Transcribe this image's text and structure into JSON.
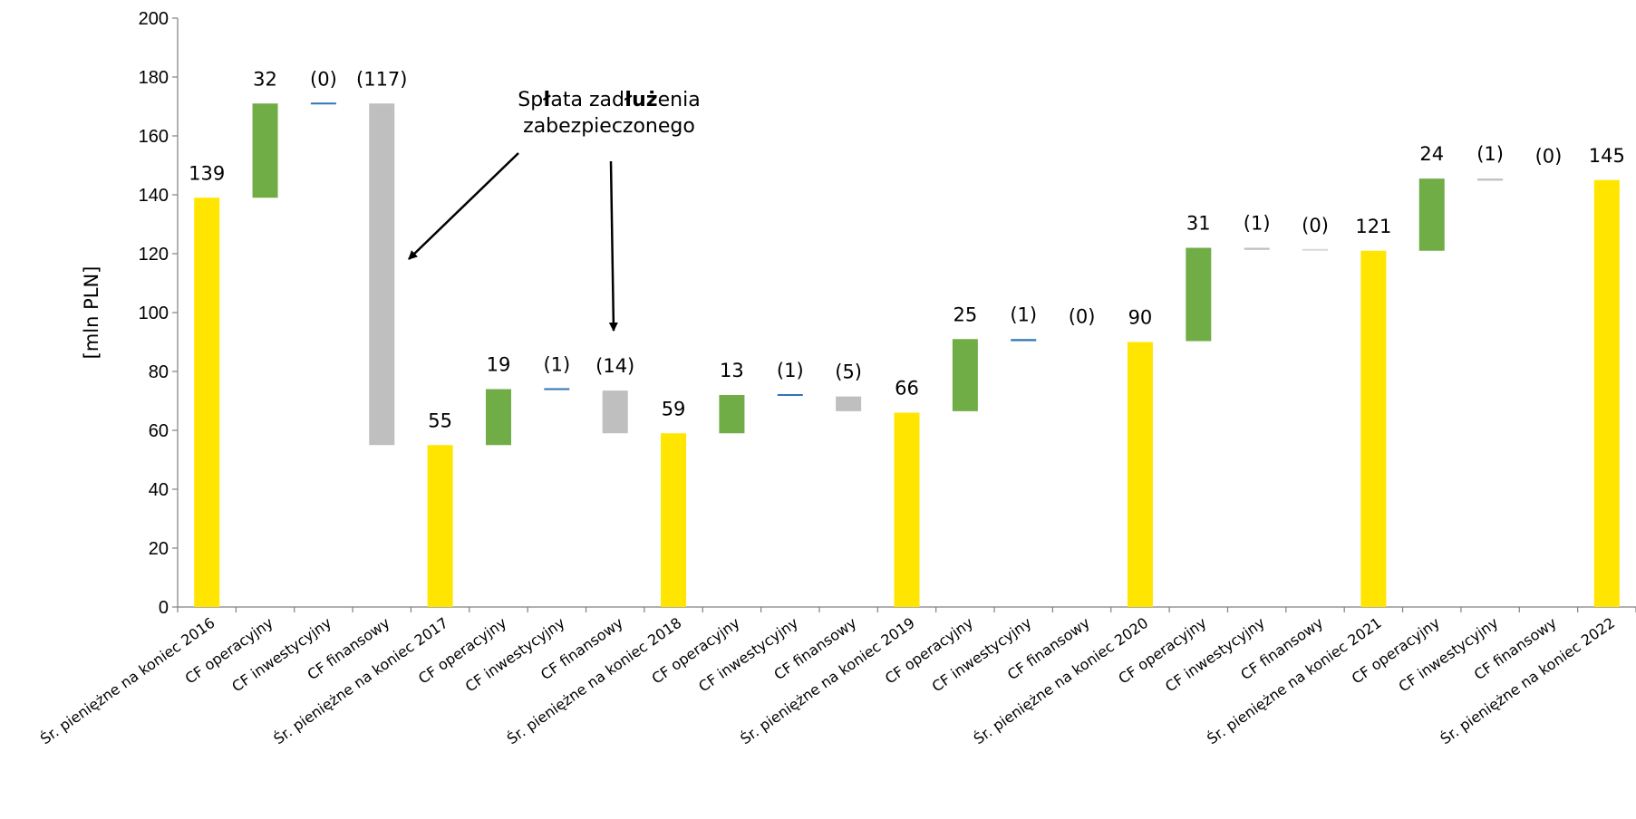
{
  "chart_data": {
    "type": "bar",
    "subtype": "waterfall",
    "ylabel": "[mln PLN]",
    "ylim": [
      0,
      200
    ],
    "yticks": [
      0,
      20,
      40,
      60,
      80,
      100,
      120,
      140,
      160,
      180,
      200
    ],
    "grid": false,
    "legend": "none",
    "colors": {
      "total": "#FFE500",
      "cf_operational": "#70AD47",
      "cf_investment_blue": "#2E75B6",
      "cf_financial": "#BFBFBF",
      "cf_financial_light": "#D9D9D9"
    },
    "categories": [
      "Śr. pieniężne na koniec 2016",
      "CF operacyjny",
      "CF inwestycyjny",
      "CF finansowy",
      "Śr. pieniężne na koniec 2017",
      "CF operacyjny",
      "CF inwestycyjny",
      "CF finansowy",
      "Śr. pieniężne na koniec 2018",
      "CF operacyjny",
      "CF inwestycyjny",
      "CF finansowy",
      "Śr. pieniężne na koniec 2019",
      "CF operacyjny",
      "CF inwestycyjny",
      "CF finansowy",
      "Śr. pieniężne na koniec 2020",
      "CF operacyjny",
      "CF inwestycyjny",
      "CF finansowy",
      "Śr. pieniężne na koniec 2021",
      "CF operacyjny",
      "CF inwestycyjny",
      "CF finansowy",
      "Śr. pieniężne na koniec 2022"
    ],
    "bars": [
      {
        "kind": "total",
        "low": 0,
        "high": 139,
        "label": "139",
        "color": "total"
      },
      {
        "kind": "delta",
        "low": 139,
        "high": 171,
        "label": "32",
        "color": "cf_operational"
      },
      {
        "kind": "delta",
        "low": 171,
        "high": 171,
        "label": "(0)",
        "color": "cf_investment_blue"
      },
      {
        "kind": "delta",
        "low": 55,
        "high": 171,
        "label": "(117)",
        "color": "cf_financial"
      },
      {
        "kind": "total",
        "low": 0,
        "high": 55,
        "label": "55",
        "color": "total"
      },
      {
        "kind": "delta",
        "low": 55,
        "high": 74,
        "label": "19",
        "color": "cf_operational"
      },
      {
        "kind": "delta",
        "low": 73.5,
        "high": 74,
        "label": "(1)",
        "color": "cf_investment_blue"
      },
      {
        "kind": "delta",
        "low": 59,
        "high": 73.5,
        "label": "(14)",
        "color": "cf_financial"
      },
      {
        "kind": "total",
        "low": 0,
        "high": 59,
        "label": "59",
        "color": "total"
      },
      {
        "kind": "delta",
        "low": 59,
        "high": 72,
        "label": "13",
        "color": "cf_operational"
      },
      {
        "kind": "delta",
        "low": 71.5,
        "high": 72,
        "label": "(1)",
        "color": "cf_investment_blue"
      },
      {
        "kind": "delta",
        "low": 66.5,
        "high": 71.5,
        "label": "(5)",
        "color": "cf_financial"
      },
      {
        "kind": "total",
        "low": 0,
        "high": 66,
        "label": "66",
        "color": "total"
      },
      {
        "kind": "delta",
        "low": 66.5,
        "high": 91,
        "label": "25",
        "color": "cf_operational"
      },
      {
        "kind": "delta",
        "low": 90.3,
        "high": 91,
        "label": "(1)",
        "color": "cf_investment_blue"
      },
      {
        "kind": "delta",
        "low": 90.3,
        "high": 90.3,
        "label": "(0)",
        "color": "cf_financial_light"
      },
      {
        "kind": "total",
        "low": 0,
        "high": 90,
        "label": "90",
        "color": "total"
      },
      {
        "kind": "delta",
        "low": 90.3,
        "high": 122,
        "label": "31",
        "color": "cf_operational"
      },
      {
        "kind": "delta",
        "low": 121.3,
        "high": 122,
        "label": "(1)",
        "color": "cf_financial"
      },
      {
        "kind": "delta",
        "low": 121,
        "high": 121.3,
        "label": "(0)",
        "color": "cf_financial_light"
      },
      {
        "kind": "total",
        "low": 0,
        "high": 121,
        "label": "121",
        "color": "total"
      },
      {
        "kind": "delta",
        "low": 121,
        "high": 145.5,
        "label": "24",
        "color": "cf_operational"
      },
      {
        "kind": "delta",
        "low": 144.8,
        "high": 145.5,
        "label": "(1)",
        "color": "cf_financial"
      },
      {
        "kind": "delta",
        "low": 144.8,
        "high": 144.8,
        "label": "(0)",
        "color": "cf_financial_light"
      },
      {
        "kind": "total",
        "low": 0,
        "high": 145,
        "label": "145",
        "color": "total"
      }
    ],
    "annotation": {
      "line1_prefix": "Sp",
      "line1_bold1": "ł",
      "line1_mid": "ata zad",
      "line1_bold2": "łuż",
      "line1_suffix": "enia",
      "line2": "zabezpieczonego",
      "arrow_targets": [
        "CF finansowy (2017)",
        "CF finansowy (2018)"
      ]
    }
  }
}
